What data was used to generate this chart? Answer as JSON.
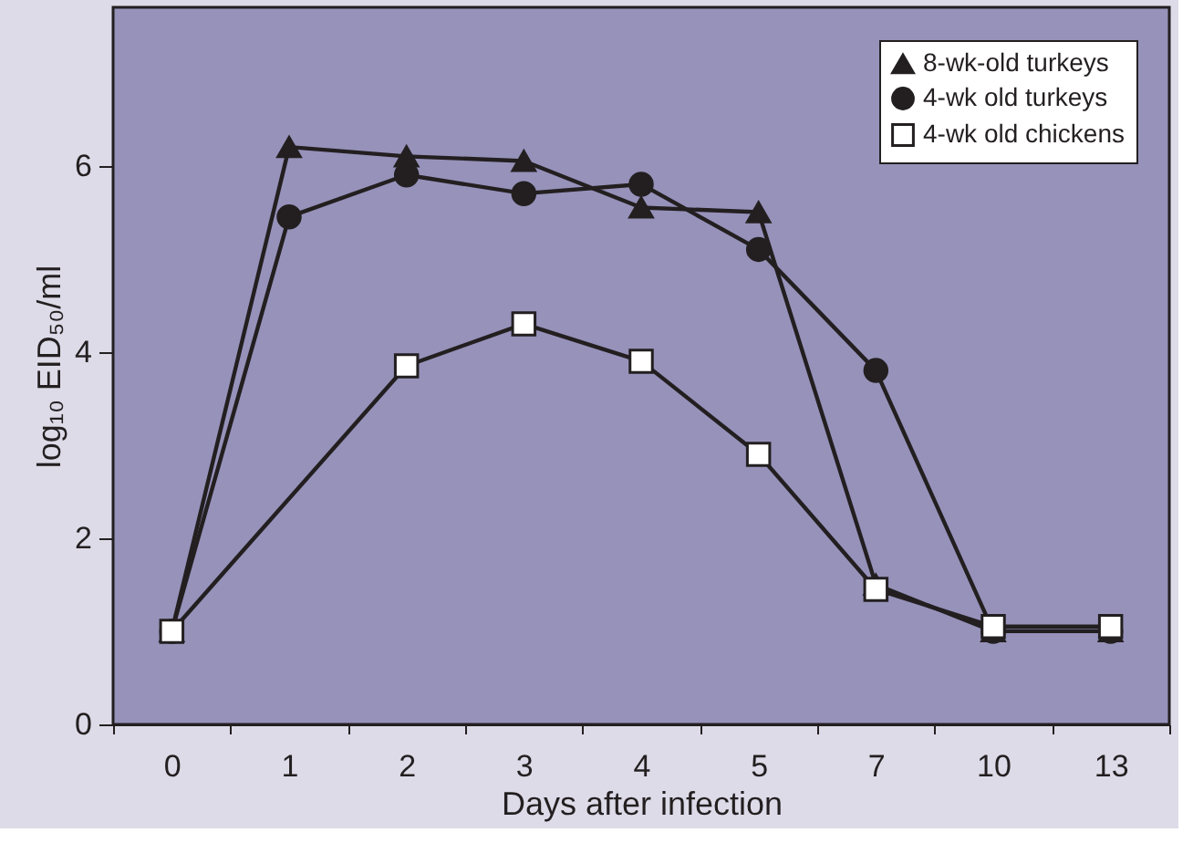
{
  "chart_data": {
    "type": "line",
    "xlabel": "Days after infection",
    "ylabel": "log₁₀ EID₅₀/ml",
    "categories": [
      "0",
      "1",
      "2",
      "3",
      "4",
      "5",
      "7",
      "10",
      "13"
    ],
    "series": [
      {
        "name": "8-wk-old turkeys",
        "color": "#231f20",
        "marker": "triangle",
        "values": [
          1.0,
          6.2,
          6.1,
          6.05,
          5.55,
          5.5,
          1.5,
          1.0,
          1.0
        ]
      },
      {
        "name": "4-wk old turkeys",
        "color": "#231f20",
        "marker": "circle",
        "values": [
          1.0,
          5.45,
          5.9,
          5.7,
          5.8,
          5.1,
          3.8,
          1.0,
          1.0
        ]
      },
      {
        "name": "4-wk old chickens",
        "color": "#ffffff",
        "marker": "square",
        "values": [
          1.0,
          null,
          3.85,
          4.3,
          3.9,
          2.9,
          1.45,
          1.05,
          1.05
        ]
      }
    ],
    "ylim": [
      0,
      7.7
    ],
    "yticks": [
      0,
      2,
      4,
      6
    ],
    "grid": false,
    "legend": "top right"
  }
}
